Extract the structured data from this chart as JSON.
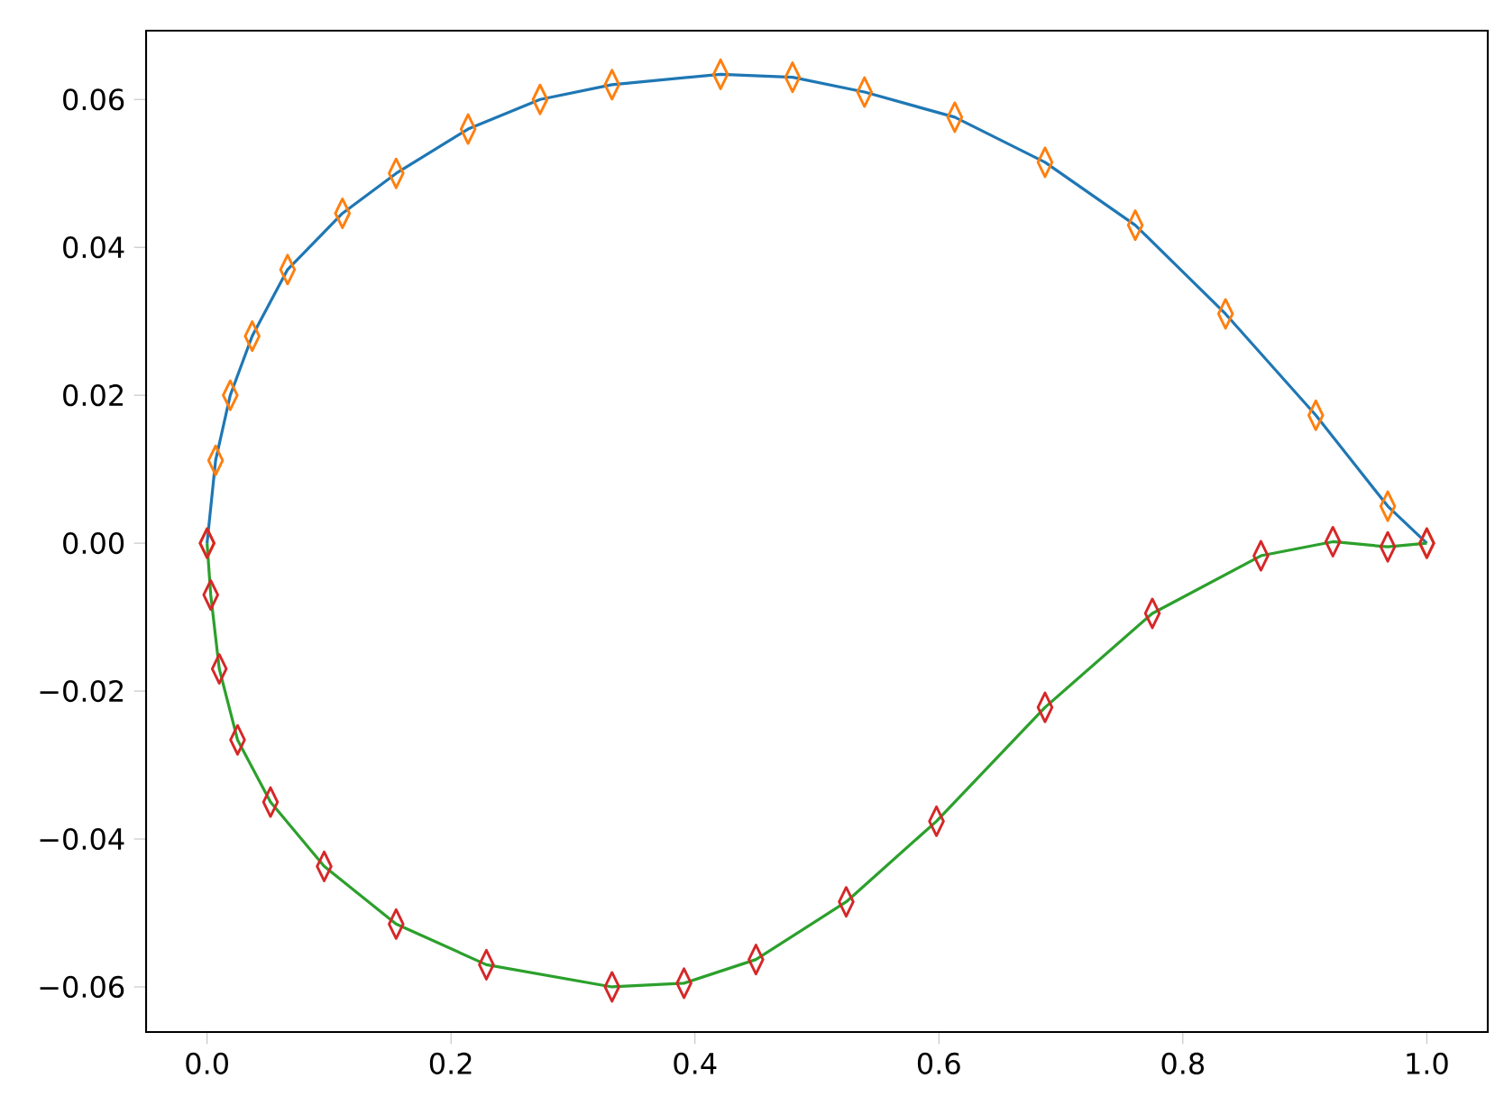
{
  "chart_data": {
    "type": "line",
    "xlim": [
      -0.05,
      1.05
    ],
    "ylim": [
      -0.0661,
      0.0693
    ],
    "xticks": [
      {
        "value": 0,
        "label": "0.0"
      },
      {
        "value": 0.2,
        "label": "0.2"
      },
      {
        "value": 0.4,
        "label": "0.4"
      },
      {
        "value": 0.6,
        "label": "0.6"
      },
      {
        "value": 0.8,
        "label": "0.8"
      },
      {
        "value": 1.0,
        "label": "1.0"
      }
    ],
    "yticks": [
      {
        "value": -0.06,
        "label": "−0.06"
      },
      {
        "value": -0.04,
        "label": "−0.04"
      },
      {
        "value": -0.02,
        "label": "−0.02"
      },
      {
        "value": 0,
        "label": "0.00"
      },
      {
        "value": 0.02,
        "label": "0.02"
      },
      {
        "value": 0.04,
        "label": "0.04"
      },
      {
        "value": 0.06,
        "label": "0.06"
      }
    ],
    "series": [
      {
        "marker": "none",
        "color": "#1f77b4",
        "x": [
          0,
          0.007,
          0.019,
          0.037,
          0.066,
          0.111,
          0.155,
          0.214,
          0.273,
          0.332,
          0.421,
          0.48,
          0.539,
          0.613,
          0.687,
          0.761,
          0.835,
          0.909,
          0.968,
          1.0
        ],
        "values": [
          0,
          0.0112,
          0.02,
          0.028,
          0.037,
          0.0446,
          0.05,
          0.056,
          0.06,
          0.062,
          0.0634,
          0.063,
          0.061,
          0.0576,
          0.0515,
          0.043,
          0.031,
          0.0173,
          0.005,
          0
        ]
      },
      {
        "type": "scatter",
        "marker": "diamond",
        "color": "#ff7f0e",
        "x": [
          0,
          0.007,
          0.019,
          0.037,
          0.066,
          0.111,
          0.155,
          0.214,
          0.273,
          0.332,
          0.421,
          0.48,
          0.539,
          0.613,
          0.687,
          0.761,
          0.835,
          0.909,
          0.968,
          1.0
        ],
        "values": [
          0,
          0.0112,
          0.02,
          0.028,
          0.037,
          0.0446,
          0.05,
          0.056,
          0.06,
          0.062,
          0.0634,
          0.063,
          0.061,
          0.0576,
          0.0515,
          0.043,
          0.031,
          0.0173,
          0.005,
          0
        ]
      },
      {
        "marker": "none",
        "color": "#2ca02c",
        "x": [
          0,
          0.003,
          0.01,
          0.025,
          0.052,
          0.096,
          0.155,
          0.229,
          0.332,
          0.391,
          0.45,
          0.524,
          0.598,
          0.687,
          0.775,
          0.864,
          0.923,
          0.968,
          1.0
        ],
        "values": [
          0,
          -0.007,
          -0.017,
          -0.0266,
          -0.035,
          -0.0437,
          -0.0515,
          -0.057,
          -0.06,
          -0.0595,
          -0.0563,
          -0.0485,
          -0.0376,
          -0.0222,
          -0.0095,
          -0.0017,
          0.0002,
          -0.0005,
          0
        ]
      },
      {
        "type": "scatter",
        "marker": "diamond",
        "color": "#d62728",
        "x": [
          0,
          0.003,
          0.01,
          0.025,
          0.052,
          0.096,
          0.155,
          0.229,
          0.332,
          0.391,
          0.45,
          0.524,
          0.598,
          0.687,
          0.775,
          0.864,
          0.923,
          0.968,
          1.0
        ],
        "values": [
          0,
          -0.007,
          -0.017,
          -0.0266,
          -0.035,
          -0.0437,
          -0.0515,
          -0.057,
          -0.06,
          -0.0595,
          -0.0563,
          -0.0485,
          -0.0376,
          -0.0222,
          -0.0095,
          -0.0017,
          0.0002,
          -0.0005,
          0
        ]
      }
    ]
  }
}
